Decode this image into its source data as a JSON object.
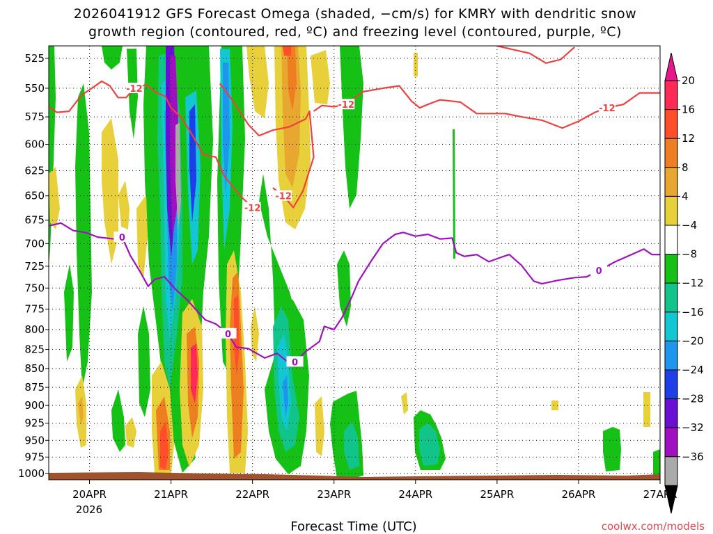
{
  "chart_data": {
    "type": "heatmap",
    "title_line1": "2026041912 GFS Forecast Omega (shaded, −cm/s) for KMRY with dendritic snow",
    "title_line2": "growth region (contoured, red, ºC) and freezing level (contoured, purple, ºC)",
    "xlabel": "Forecast Time (UTC)",
    "credit": "coolwx.com/models",
    "x_ticks": [
      "20APR",
      "21APR",
      "22APR",
      "23APR",
      "24APR",
      "25APR",
      "26APR",
      "27APR"
    ],
    "x_tick_sub": "2026",
    "xlim_days": [
      19.5,
      27.0
    ],
    "y_ticks": [
      525,
      550,
      575,
      600,
      625,
      650,
      675,
      700,
      725,
      750,
      775,
      800,
      825,
      850,
      875,
      900,
      925,
      950,
      975,
      1000
    ],
    "ylim_hPa": [
      1010,
      515
    ],
    "y_scale": "log",
    "grid": true,
    "colorbar": {
      "labels": [
        "20",
        "16",
        "12",
        "8",
        "4",
        "−4",
        "−8",
        "−12",
        "−16",
        "−20",
        "−24",
        "−28",
        "−32",
        "−36"
      ],
      "colors": [
        "#ff2a55",
        "#ff4e2a",
        "#ee7f20",
        "#e8a830",
        "#e7d03a",
        "#ffffff",
        "#16c116",
        "#10c48a",
        "#12c6d2",
        "#1e96ee",
        "#1e3fe8",
        "#6a10d2",
        "#a010c0",
        "#aaaaaa",
        "#000000"
      ],
      "top_arrow_color": "#e6178e",
      "bottom_arrow_color": "#000000"
    },
    "contours": [
      {
        "label": "-12",
        "color": "#ef4040",
        "points": [
          [
            19.5,
            566
          ],
          [
            19.6,
            571
          ],
          [
            19.75,
            570
          ],
          [
            19.9,
            556
          ],
          [
            20.05,
            549
          ],
          [
            20.15,
            544
          ],
          [
            20.25,
            548
          ],
          [
            20.35,
            558
          ],
          [
            20.45,
            558
          ],
          [
            20.55,
            550
          ],
          [
            20.7,
            547
          ],
          [
            20.8,
            553
          ],
          [
            20.93,
            557
          ],
          [
            21.0,
            567
          ],
          [
            21.12,
            575
          ],
          [
            21.25,
            590
          ],
          [
            21.4,
            610
          ],
          [
            21.55,
            612
          ],
          [
            21.65,
            630
          ],
          [
            21.85,
            650
          ],
          [
            22.0,
            662
          ]
        ]
      },
      {
        "label": "-12",
        "color": "#ef4040",
        "points": [
          [
            21.6,
            546
          ],
          [
            21.75,
            560
          ],
          [
            21.95,
            582
          ],
          [
            22.08,
            592
          ],
          [
            22.25,
            587
          ],
          [
            22.45,
            584
          ],
          [
            22.65,
            577
          ],
          [
            22.7,
            570
          ],
          [
            22.75,
            612
          ],
          [
            22.62,
            645
          ],
          [
            22.5,
            662
          ],
          [
            22.38,
            650
          ],
          [
            22.25,
            642
          ]
        ]
      },
      {
        "label": "-12",
        "color": "#ef4040",
        "points": [
          [
            22.75,
            570
          ],
          [
            22.85,
            565
          ],
          [
            23.0,
            566
          ],
          [
            23.15,
            564
          ],
          [
            23.35,
            553
          ],
          [
            23.6,
            550
          ],
          [
            23.8,
            548
          ],
          [
            23.95,
            561
          ],
          [
            24.05,
            567
          ],
          [
            24.15,
            564
          ],
          [
            24.3,
            560
          ],
          [
            24.55,
            562
          ],
          [
            24.75,
            572
          ],
          [
            24.9,
            572
          ],
          [
            25.1,
            572
          ],
          [
            25.3,
            575
          ],
          [
            25.55,
            578
          ],
          [
            25.8,
            585
          ],
          [
            26.0,
            579
          ],
          [
            26.2,
            571
          ],
          [
            26.35,
            567
          ],
          [
            26.55,
            564
          ],
          [
            26.75,
            554
          ],
          [
            27.0,
            554
          ]
        ]
      },
      {
        "label": "",
        "color": "#ef4040",
        "points": [
          [
            25.0,
            515
          ],
          [
            25.2,
            518
          ],
          [
            25.4,
            521
          ],
          [
            25.6,
            529
          ],
          [
            25.78,
            526
          ],
          [
            25.95,
            516
          ]
        ]
      },
      {
        "label": "0",
        "color": "#a010c0",
        "points": [
          [
            19.5,
            681
          ],
          [
            19.65,
            678
          ],
          [
            19.8,
            686
          ],
          [
            19.95,
            688
          ],
          [
            20.1,
            693
          ],
          [
            20.3,
            695
          ],
          [
            20.4,
            693
          ],
          [
            20.5,
            713
          ],
          [
            20.62,
            731
          ],
          [
            20.72,
            748
          ],
          [
            20.8,
            740
          ],
          [
            20.92,
            737
          ],
          [
            21.05,
            751
          ],
          [
            21.2,
            764
          ],
          [
            21.3,
            775
          ],
          [
            21.42,
            788
          ],
          [
            21.55,
            793
          ],
          [
            21.7,
            805
          ],
          [
            21.8,
            822
          ],
          [
            21.95,
            824
          ],
          [
            22.05,
            830
          ],
          [
            22.15,
            836
          ],
          [
            22.3,
            830
          ],
          [
            22.42,
            840
          ],
          [
            22.52,
            841
          ],
          [
            22.65,
            828
          ],
          [
            22.82,
            815
          ],
          [
            22.88,
            796
          ],
          [
            23.0,
            800
          ],
          [
            23.1,
            785
          ],
          [
            23.22,
            760
          ],
          [
            23.3,
            742
          ],
          [
            23.45,
            720
          ],
          [
            23.6,
            700
          ],
          [
            23.75,
            690
          ],
          [
            23.85,
            688
          ],
          [
            24.0,
            692
          ],
          [
            24.15,
            690
          ],
          [
            24.3,
            695
          ],
          [
            24.45,
            694
          ],
          [
            24.5,
            710
          ],
          [
            24.6,
            714
          ],
          [
            24.75,
            712
          ],
          [
            24.9,
            720
          ],
          [
            25.05,
            715
          ],
          [
            25.15,
            712
          ],
          [
            25.3,
            724
          ],
          [
            25.45,
            742
          ],
          [
            25.55,
            745
          ],
          [
            25.75,
            741
          ],
          [
            25.95,
            738
          ],
          [
            26.1,
            737
          ],
          [
            26.25,
            730
          ],
          [
            26.45,
            720
          ],
          [
            26.65,
            712
          ],
          [
            26.8,
            706
          ],
          [
            26.9,
            712
          ],
          [
            27.0,
            712
          ]
        ]
      }
    ]
  }
}
